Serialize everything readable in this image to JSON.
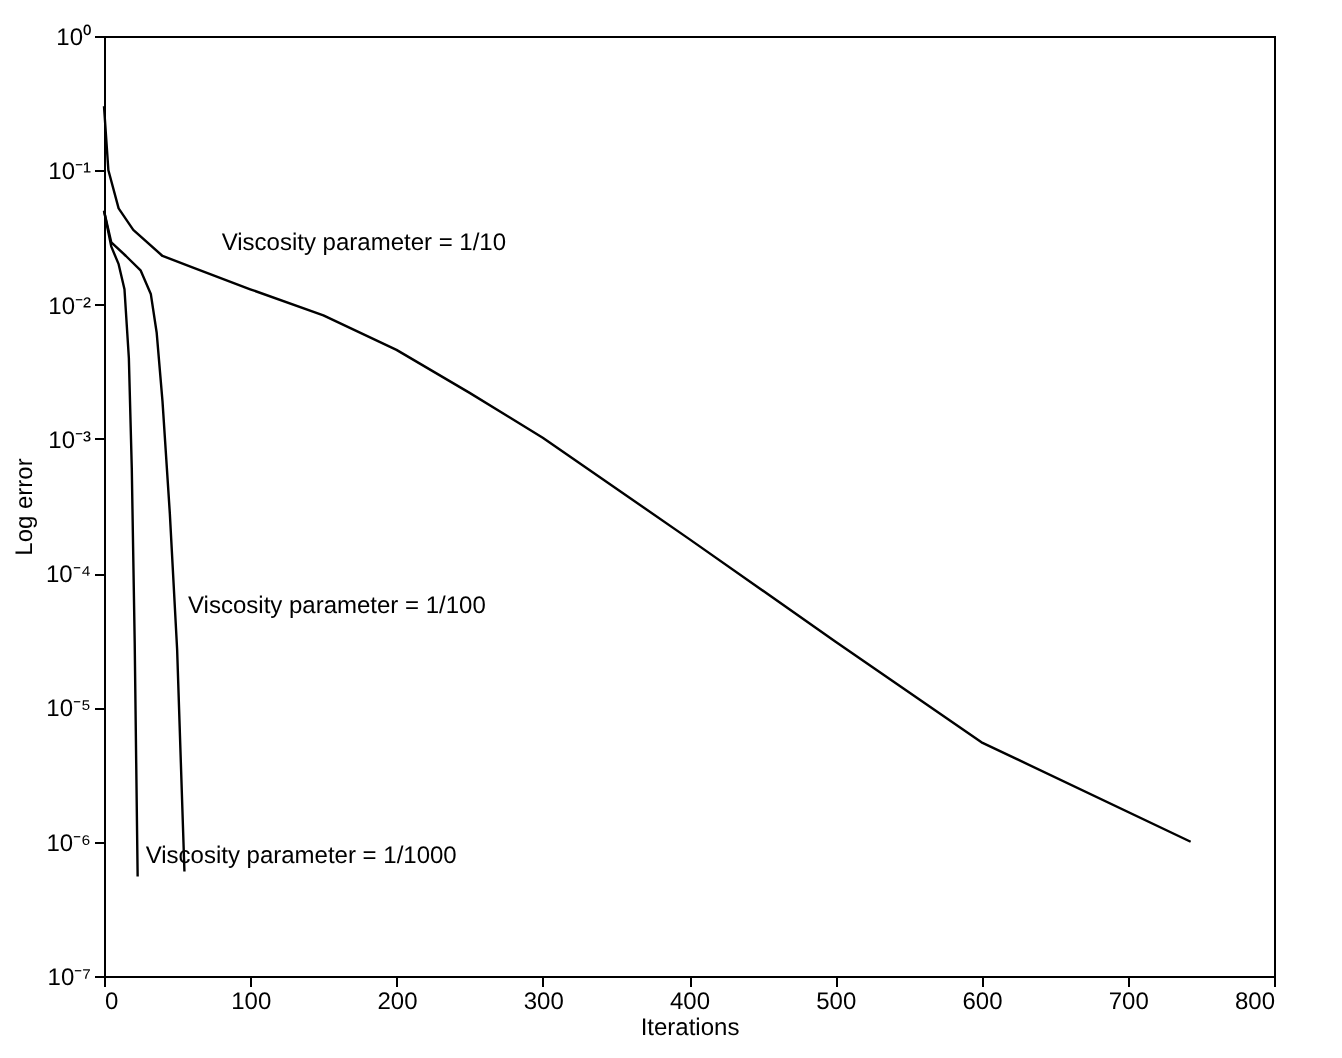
{
  "chart_data": {
    "type": "line",
    "xlabel": "Iterations",
    "ylabel": "Log error",
    "log": "y",
    "grid": false,
    "line_style": "solid",
    "marker": "none",
    "xlim": [
      0,
      800
    ],
    "xticks": [
      0,
      100,
      200,
      300,
      400,
      500,
      600,
      700,
      800
    ],
    "ylim": [
      1e-07,
      1
    ],
    "yticks": [
      {
        "value": 1,
        "label": "10⁰"
      },
      {
        "value": 0.1,
        "label": "10⁻¹"
      },
      {
        "value": 0.01,
        "label": "10⁻²"
      },
      {
        "value": 0.001,
        "label": "10⁻³"
      },
      {
        "value": 0.0001,
        "label": "10⁻⁴"
      },
      {
        "value": 1e-05,
        "label": "10⁻⁵"
      },
      {
        "value": 1e-06,
        "label": "10⁻⁶"
      },
      {
        "value": 1e-07,
        "label": "10⁻⁷"
      }
    ],
    "series": [
      {
        "color": "#000000",
        "x": [
          0,
          3,
          10,
          20,
          40,
          60,
          100,
          150,
          200,
          250,
          300,
          400,
          500,
          600,
          743
        ],
        "values": [
          0.3,
          0.1,
          0.052,
          0.036,
          0.023,
          0.019,
          0.013,
          0.0083,
          0.0046,
          0.0022,
          0.00102,
          0.00018,
          3.1e-05,
          5.5e-06,
          1e-06
        ]
      },
      {
        "color": "#000000",
        "x": [
          0,
          5,
          15,
          25,
          32,
          36,
          40,
          45,
          50,
          55
        ],
        "values": [
          0.05,
          0.029,
          0.023,
          0.018,
          0.012,
          0.0062,
          0.0019,
          0.00028,
          2.7e-05,
          6e-07
        ]
      },
      {
        "color": "#000000",
        "x": [
          0,
          5,
          10,
          14,
          17,
          19,
          21,
          23
        ],
        "values": [
          0.05,
          0.027,
          0.02,
          0.013,
          0.004,
          0.0006,
          3e-05,
          5.5e-07
        ]
      }
    ],
    "annotations": [
      {
        "text": "Viscosity parameter = 1/10",
        "x": 75,
        "y": 0.02
      },
      {
        "text": "Viscosity parameter = 1/100",
        "x": 52,
        "y": 4e-05
      },
      {
        "text": "Viscosity parameter = 1/1000",
        "x": 23,
        "y": 5.5e-07
      }
    ]
  }
}
